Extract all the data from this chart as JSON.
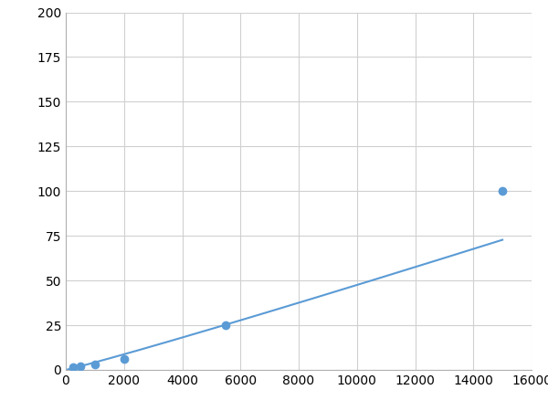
{
  "x": [
    250,
    500,
    1000,
    2000,
    5500,
    15000
  ],
  "y": [
    1.5,
    2,
    3,
    6,
    25,
    100
  ],
  "line_color": "#5b9bd5",
  "marker_color": "#5b9bd5",
  "marker_size": 6,
  "marker_style": "o",
  "line_width": 1.5,
  "xlim": [
    0,
    16000
  ],
  "ylim": [
    0,
    200
  ],
  "xticks": [
    0,
    2000,
    4000,
    6000,
    8000,
    10000,
    12000,
    14000,
    16000
  ],
  "yticks": [
    0,
    25,
    50,
    75,
    100,
    125,
    150,
    175,
    200
  ],
  "grid": true,
  "background_color": "#ffffff",
  "plot_background_color": "#ffffff",
  "tick_labelsize": 10,
  "grid_color": "#d0d0d0",
  "spine_color": "#b0b0b0"
}
